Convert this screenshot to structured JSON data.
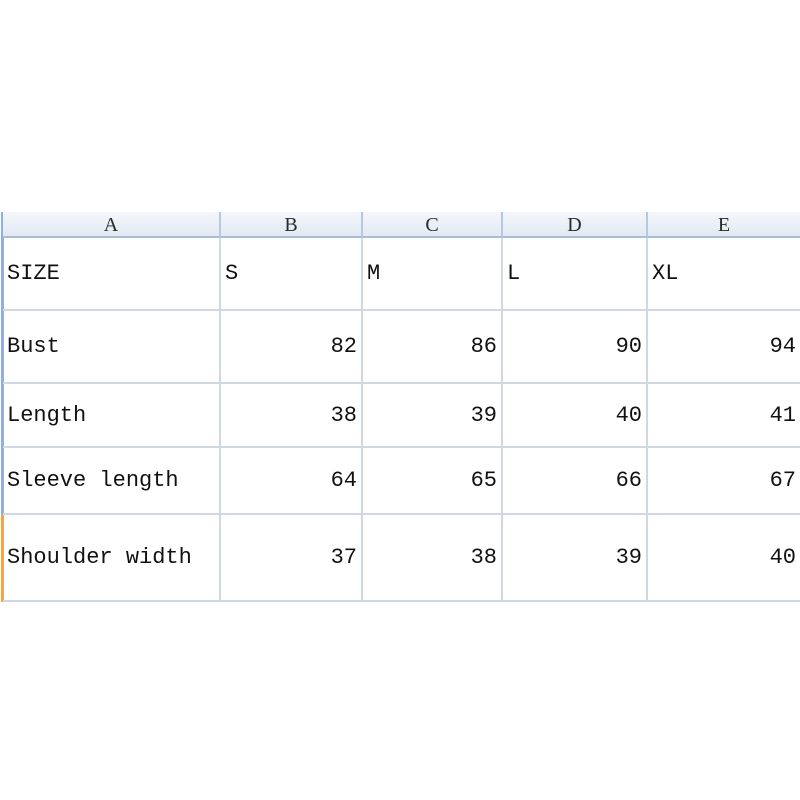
{
  "columns": [
    "A",
    "B",
    "C",
    "D",
    "E"
  ],
  "rows": [
    {
      "label": "SIZE",
      "values": [
        "S",
        "M",
        "L",
        "XL"
      ],
      "text": true
    },
    {
      "label": "Bust",
      "values": [
        "82",
        "86",
        "90",
        "94"
      ]
    },
    {
      "label": "Length",
      "values": [
        "38",
        "39",
        "40",
        "41"
      ]
    },
    {
      "label": "Sleeve length",
      "values": [
        "64",
        "65",
        "66",
        "67"
      ]
    },
    {
      "label": "Shoulder width",
      "values": [
        "37",
        "38",
        "39",
        "40"
      ]
    }
  ],
  "colors": {
    "header_border": "#a8bdd6",
    "grid": "#cfd8e4",
    "selection_accent": "#f0a848"
  }
}
